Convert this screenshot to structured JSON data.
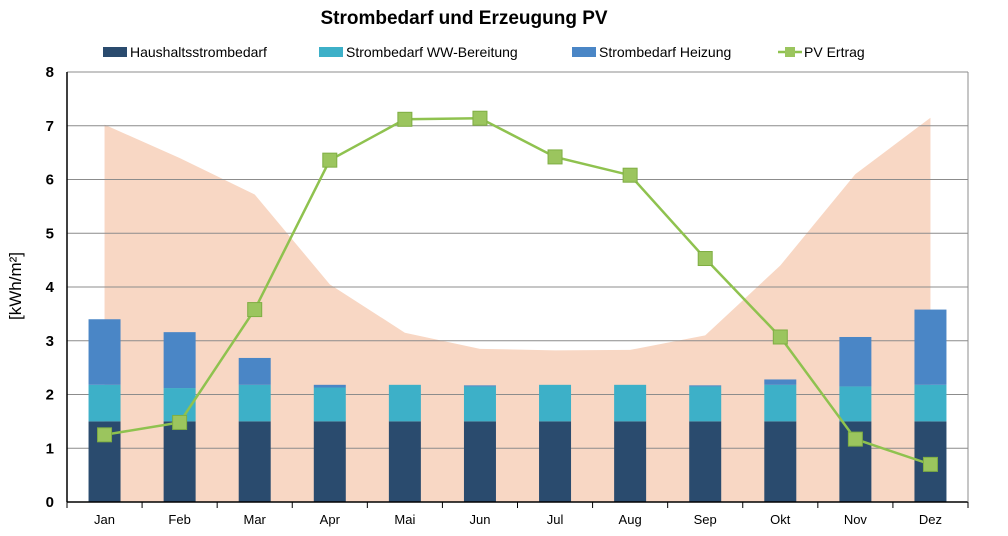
{
  "chart_data": {
    "type": "bar",
    "title": "Strombedarf und Erzeugung PV",
    "xlabel": "",
    "ylabel": "[kWh/m²]",
    "ylim": [
      0,
      8
    ],
    "yticks": [
      0,
      1,
      2,
      3,
      4,
      5,
      6,
      7,
      8
    ],
    "grid": true,
    "legend_position": "top",
    "categories": [
      "Jan",
      "Feb",
      "Mar",
      "Apr",
      "Mai",
      "Jun",
      "Jul",
      "Aug",
      "Sep",
      "Okt",
      "Nov",
      "Dez"
    ],
    "series": [
      {
        "name": "Haushaltsstrombedarf",
        "type": "stacked-bar",
        "color": "#2a4b6e",
        "values": [
          1.5,
          1.5,
          1.5,
          1.5,
          1.5,
          1.5,
          1.5,
          1.5,
          1.5,
          1.5,
          1.5,
          1.5
        ]
      },
      {
        "name": "Strombedarf WW-Bereitung",
        "type": "stacked-bar",
        "color": "#3db0c8",
        "values": [
          0.68,
          0.62,
          0.68,
          0.63,
          0.68,
          0.65,
          0.68,
          0.68,
          0.65,
          0.68,
          0.65,
          0.68
        ]
      },
      {
        "name": "Strombedarf Heizung",
        "type": "stacked-bar",
        "color": "#4a86c6",
        "values": [
          1.22,
          1.04,
          0.5,
          0.05,
          0.0,
          0.02,
          0.0,
          0.0,
          0.02,
          0.1,
          0.92,
          1.4
        ]
      },
      {
        "name": "PV Ertrag",
        "type": "line",
        "color": "#8fc24f",
        "marker_color": "#9bc55e",
        "values": [
          1.25,
          1.48,
          3.58,
          6.36,
          7.12,
          7.14,
          6.42,
          6.08,
          4.53,
          3.07,
          1.17,
          0.7
        ]
      }
    ],
    "background_area": {
      "color": "#f8d7c4",
      "x": [
        "Jan",
        "Feb",
        "Mar",
        "Apr",
        "Mai",
        "Jun",
        "Jul",
        "Aug",
        "Sep",
        "Okt",
        "Nov",
        "Dez"
      ],
      "values": [
        7.02,
        6.4,
        5.72,
        4.05,
        3.15,
        2.85,
        2.82,
        2.83,
        3.1,
        4.4,
        6.1,
        7.15
      ]
    }
  }
}
